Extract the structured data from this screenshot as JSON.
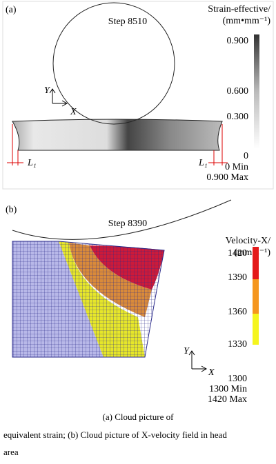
{
  "panel_a": {
    "label": "(a)",
    "step": "Step 8510",
    "legend_title": "Strain-effective/",
    "legend_unit": "(mm•mm⁻¹)",
    "ticks": [
      "0.900",
      "0.600",
      "0.300",
      "0"
    ],
    "min": "0 Min",
    "max": "0.900 Max",
    "axis_y": "Y",
    "axis_x": "X",
    "l1_left": "L₁",
    "l1_right": "L₁"
  },
  "panel_b": {
    "label": "(b)",
    "step": "Step 8390",
    "legend_title": "Velocity-X/",
    "legend_unit": "(mm•s⁻¹)",
    "ticks": [
      "1420",
      "1390",
      "1360",
      "1330",
      "1300"
    ],
    "min": "1300 Min",
    "max": "1420 Max",
    "axis_y": "Y",
    "axis_x": "X"
  },
  "caption": [
    "(a)  Cloud  picture  of",
    "equivalent strain; (b) Cloud picture of X-velocity field in head",
    "area"
  ]
}
